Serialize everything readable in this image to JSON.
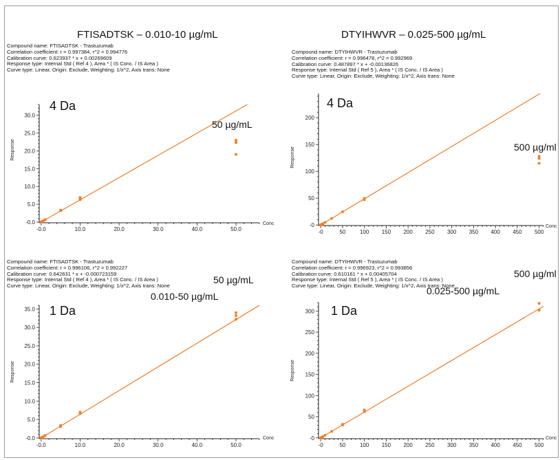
{
  "column_titles": [
    "FTISADTSK – 0.010-10 µg/mL",
    "DTYIHWVR – 0.025-500 µg/mL"
  ],
  "panels": [
    {
      "info": [
        "Compound name: FTISADTSK - Trastuzumab",
        "Correlation coefficient: r = 0.997384, r^2 = 0.994776",
        "Calibration curve: 0.623937 * x + 0.00269609",
        "Response type: Internal Std ( Ref 4 ), Area * ( IS Conc. / IS Area )",
        "Curve type: Linear, Origin: Exclude, Weighting: 1/x^2, Axis trans: None"
      ],
      "label": "4 Da",
      "annotations": [
        "50 µg/mL"
      ]
    },
    {
      "info": [
        "Compound name: DTYIHWVR - Trastuzumab",
        "Correlation coefficient: r = 0.996478, r^2 = 0.992969",
        "Calibration curve: 0.487897 * x + -0.00136826",
        "Response type: Internal Std ( Ref 5 ), Area * ( IS Conc. / IS Area )",
        "Curve type: Linear, Origin: Exclude, Weighting: 1/x^2, Axis trans: None"
      ],
      "label": "4 Da",
      "annotations": [
        "500 µg/ml"
      ]
    },
    {
      "info": [
        "Compound name: FTISADTSK - Trastuzumab",
        "Correlation coefficient: r = 0.996106, r^2 = 0.992227",
        "Calibration curve: 0.642631 * x + -0.000723159",
        "Response type: Internal Std ( Ref 4 ), Area * ( IS Conc. / IS Area )",
        "Curve type: Linear, Origin: Exclude, Weighting: 1/x^2, Axis trans: None"
      ],
      "label": "1 Da",
      "annotations": [
        "50 µg/mL",
        "0.010-50 µg/mL"
      ]
    },
    {
      "info": [
        "Compound name: DTYIHWVR - Trastuzumab",
        "Correlation coefficient: r = 0.996923, r^2 = 0.993856",
        "Calibration curve: 0.610161 * x + 0.00405704",
        "Response type: Internal Std ( Ref 5 ), Area * ( IS Conc. / IS Area )",
        "Curve type: Linear, Origin: Exclude, Weighting: 1/x^2, Axis trans: None"
      ],
      "label": "1 Da",
      "annotations": [
        "500 µg/ml",
        "0.025-500 µg/mL"
      ]
    }
  ],
  "colors": {
    "series": "#f07d28",
    "axis": "#222222"
  },
  "chart_data": [
    {
      "type": "scatter",
      "xlabel": "Conc",
      "ylabel": "Response",
      "xlim": [
        -0.5,
        56
      ],
      "ylim": [
        -0.2,
        33
      ],
      "xticks": [
        0,
        10,
        20,
        30,
        40,
        50
      ],
      "xtick_labels": [
        "-0.0",
        "10.0",
        "20.0",
        "30.0",
        "40.0",
        "50.0"
      ],
      "yticks": [
        0,
        5,
        10,
        15,
        20,
        25,
        30
      ],
      "ytick_labels": [
        "-0.0",
        "5.0",
        "10.0",
        "15.0",
        "20.0",
        "25.0",
        "30.0"
      ],
      "fit": {
        "slope": 0.623937,
        "intercept": 0.00269609
      },
      "points": [
        [
          0.01,
          0.01
        ],
        [
          0.025,
          0.02
        ],
        [
          0.05,
          0.04
        ],
        [
          0.1,
          0.07
        ],
        [
          0.25,
          0.16
        ],
        [
          0.5,
          0.32
        ],
        [
          1,
          0.6
        ],
        [
          1,
          0.68
        ],
        [
          5,
          3.2
        ],
        [
          5,
          3.35
        ],
        [
          10,
          6.3
        ],
        [
          10,
          6.6
        ],
        [
          10,
          6.9
        ],
        [
          50,
          19.0
        ],
        [
          50,
          22.3
        ],
        [
          50,
          23.0
        ]
      ]
    },
    {
      "type": "scatter",
      "xlabel": "Conc",
      "ylabel": "Response",
      "xlim": [
        -5,
        510
      ],
      "ylim": [
        -1,
        245
      ],
      "xticks": [
        0,
        50,
        100,
        150,
        200,
        250,
        300,
        350,
        400,
        450,
        500
      ],
      "xtick_labels": [
        "-0",
        "50",
        "100",
        "150",
        "200",
        "250",
        "300",
        "350",
        "400",
        "450",
        "500"
      ],
      "yticks": [
        0,
        50,
        100,
        150,
        200
      ],
      "ytick_labels": [
        "-0",
        "50",
        "100",
        "150",
        "200"
      ],
      "fit": {
        "slope": 0.487897,
        "intercept": -0.00136826
      },
      "points": [
        [
          0.025,
          0.01
        ],
        [
          0.05,
          0.02
        ],
        [
          0.1,
          0.05
        ],
        [
          0.25,
          0.12
        ],
        [
          0.5,
          0.25
        ],
        [
          1,
          0.49
        ],
        [
          2.5,
          1.2
        ],
        [
          5,
          2.4
        ],
        [
          10,
          4.9
        ],
        [
          25,
          12.2
        ],
        [
          50,
          24.6
        ],
        [
          100,
          47.0
        ],
        [
          100,
          49.5
        ],
        [
          500,
          115
        ],
        [
          500,
          124
        ],
        [
          500,
          128
        ]
      ]
    },
    {
      "type": "scatter",
      "xlabel": "Conc",
      "ylabel": "Response",
      "xlim": [
        -0.5,
        56
      ],
      "ylim": [
        -0.2,
        36
      ],
      "xticks": [
        0,
        10,
        20,
        30,
        40,
        50
      ],
      "xtick_labels": [
        "-0.0",
        "10.0",
        "20.0",
        "30.0",
        "40.0",
        "50.0"
      ],
      "yticks": [
        0,
        5,
        10,
        15,
        20,
        25,
        30,
        35
      ],
      "ytick_labels": [
        "-0.0",
        "5.0",
        "10.0",
        "15.0",
        "20.0",
        "25.0",
        "30.0",
        "35.0"
      ],
      "fit": {
        "slope": 0.642631,
        "intercept": -0.000723159
      },
      "points": [
        [
          0.01,
          0.01
        ],
        [
          0.025,
          0.02
        ],
        [
          0.05,
          0.03
        ],
        [
          0.1,
          0.06
        ],
        [
          0.25,
          0.16
        ],
        [
          0.5,
          0.32
        ],
        [
          1,
          0.62
        ],
        [
          1,
          0.68
        ],
        [
          5,
          3.1
        ],
        [
          5,
          3.4
        ],
        [
          10,
          6.6
        ],
        [
          10,
          7.0
        ],
        [
          50,
          32.2
        ],
        [
          50,
          33.2
        ],
        [
          50,
          34.0
        ]
      ]
    },
    {
      "type": "scatter",
      "xlabel": "Conc",
      "ylabel": "Response",
      "xlim": [
        -5,
        510
      ],
      "ylim": [
        -2,
        320
      ],
      "xticks": [
        0,
        50,
        100,
        150,
        200,
        250,
        300,
        350,
        400,
        450,
        500
      ],
      "xtick_labels": [
        "-0",
        "50",
        "100",
        "150",
        "200",
        "250",
        "300",
        "350",
        "400",
        "450",
        "500"
      ],
      "yticks": [
        0,
        50,
        100,
        150,
        200,
        250,
        300
      ],
      "ytick_labels": [
        "-0",
        "50",
        "100",
        "150",
        "200",
        "250",
        "300"
      ],
      "fit": {
        "slope": 0.610161,
        "intercept": 0.00405704
      },
      "points": [
        [
          0.025,
          0.02
        ],
        [
          0.05,
          0.03
        ],
        [
          0.1,
          0.06
        ],
        [
          0.25,
          0.15
        ],
        [
          0.5,
          0.3
        ],
        [
          1,
          0.61
        ],
        [
          2.5,
          1.5
        ],
        [
          5,
          3.0
        ],
        [
          10,
          6.1
        ],
        [
          25,
          15.2
        ],
        [
          50,
          30.5
        ],
        [
          50,
          32.0
        ],
        [
          100,
          62.0
        ],
        [
          100,
          66.0
        ],
        [
          500,
          302
        ],
        [
          500,
          318
        ]
      ]
    }
  ]
}
